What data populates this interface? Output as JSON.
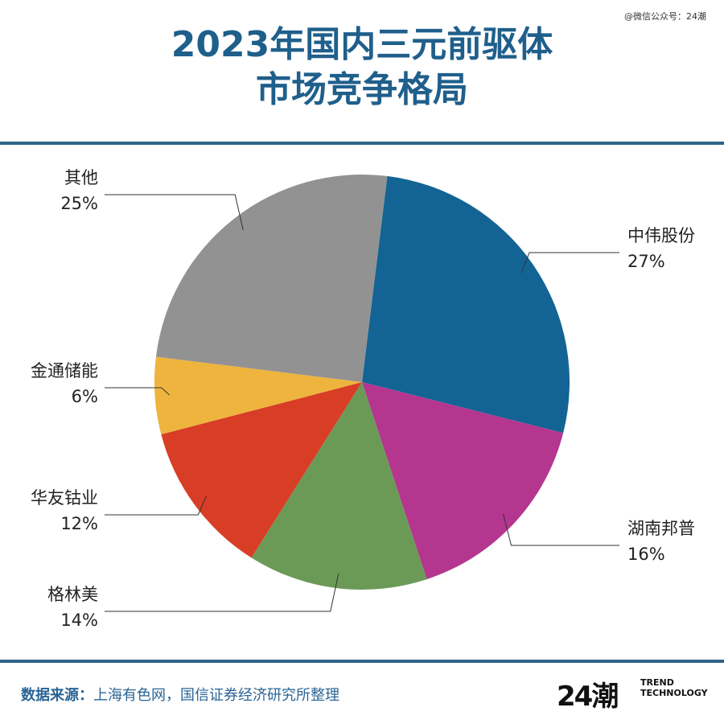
{
  "watermark": "@微信公众号：24潮",
  "title": {
    "line1": "2023年国内三元前驱体",
    "line2": "市场竞争格局"
  },
  "footer": {
    "source_label": "数据来源：",
    "source_text": "上海有色网，国信证券经济研究所整理"
  },
  "brand": {
    "mark": "24潮",
    "line1": "TREND",
    "line2": "TECHNOLOGY"
  },
  "colors": {
    "title": "#1f5f8b",
    "rule": "#2f6489",
    "footer_text": "#2a6496"
  },
  "chart_data": {
    "type": "pie",
    "start_angle_deg": 7,
    "direction": "clockwise",
    "slices": [
      {
        "label": "中伟股份",
        "value": 27,
        "value_label": "27%",
        "color": "#136494",
        "side": "right"
      },
      {
        "label": "湖南邦普",
        "value": 16,
        "value_label": "16%",
        "color": "#b4368f",
        "side": "right"
      },
      {
        "label": "格林美",
        "value": 14,
        "value_label": "14%",
        "color": "#6b9a57",
        "side": "left"
      },
      {
        "label": "华友钴业",
        "value": 12,
        "value_label": "12%",
        "color": "#d83d26",
        "side": "left"
      },
      {
        "label": "金通储能",
        "value": 6,
        "value_label": "6%",
        "color": "#eeb43e",
        "side": "left"
      },
      {
        "label": "其他",
        "value": 25,
        "value_label": "25%",
        "color": "#929292",
        "side": "left"
      }
    ]
  }
}
